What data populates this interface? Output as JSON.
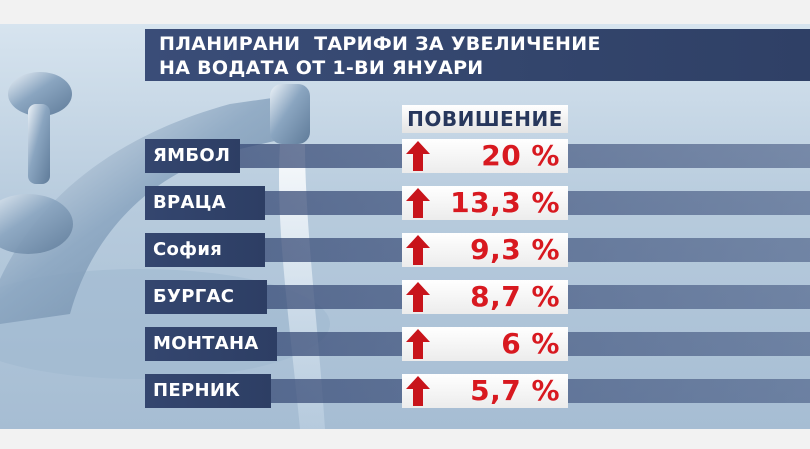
{
  "title": {
    "line1": "ПЛАНИРАНИ  ТАРИФИ ЗА УВЕЛИЧЕНИЕ",
    "line2": "НА ВОДАТА ОТ 1-ВИ ЯНУАРИ"
  },
  "column_header": "ПОВИШЕНИЕ",
  "rows": [
    {
      "city": "ЯМБОЛ",
      "value": "20 %"
    },
    {
      "city": "ВРАЦА",
      "value": "13,3 %"
    },
    {
      "city": "София",
      "value": "9,3 %"
    },
    {
      "city": "БУРГАС",
      "value": "8,7 %"
    },
    {
      "city": "МОНТАНА",
      "value": "6 %"
    },
    {
      "city": "ПЕРНИК",
      "value": "5,7 %"
    }
  ],
  "colors": {
    "panel": "#34466f",
    "value_red": "#d81920",
    "arrow_red": "#c8141b",
    "header_text": "#27375c"
  },
  "icons": {
    "faucet": "faucet-icon",
    "arrow": "arrow-up-icon"
  }
}
